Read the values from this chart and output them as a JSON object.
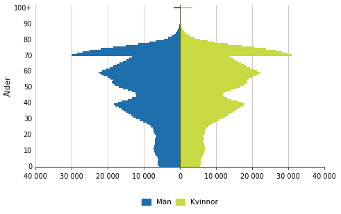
{
  "ylabel": "Ålder",
  "men_color": "#1f6fad",
  "women_color": "#c8d942",
  "background_color": "#ffffff",
  "grid_color": "#b0b0b0",
  "legend_men": "Män",
  "legend_women": "Kvinnor",
  "ages": [
    0,
    1,
    2,
    3,
    4,
    5,
    6,
    7,
    8,
    9,
    10,
    11,
    12,
    13,
    14,
    15,
    16,
    17,
    18,
    19,
    20,
    21,
    22,
    23,
    24,
    25,
    26,
    27,
    28,
    29,
    30,
    31,
    32,
    33,
    34,
    35,
    36,
    37,
    38,
    39,
    40,
    41,
    42,
    43,
    44,
    45,
    46,
    47,
    48,
    49,
    50,
    51,
    52,
    53,
    54,
    55,
    56,
    57,
    58,
    59,
    60,
    61,
    62,
    63,
    64,
    65,
    66,
    67,
    68,
    69,
    70,
    71,
    72,
    73,
    74,
    75,
    76,
    77,
    78,
    79,
    80,
    81,
    82,
    83,
    84,
    85,
    86,
    87,
    88,
    89,
    90,
    91,
    92,
    93,
    94,
    95,
    96,
    97,
    98,
    99,
    100
  ],
  "men": [
    5800,
    6100,
    6200,
    6100,
    6050,
    6200,
    6400,
    6700,
    7000,
    7100,
    7200,
    7300,
    7200,
    7100,
    7000,
    6900,
    6850,
    6900,
    6800,
    6600,
    7000,
    7200,
    7300,
    7400,
    7500,
    8100,
    8700,
    9300,
    10200,
    11100,
    12100,
    12800,
    13500,
    14200,
    14800,
    15500,
    16200,
    17000,
    17800,
    18200,
    17200,
    16100,
    14500,
    13200,
    12200,
    12100,
    12300,
    13200,
    14500,
    15800,
    17000,
    17800,
    18500,
    18900,
    18500,
    19200,
    20000,
    21200,
    22000,
    22500,
    21500,
    20500,
    19500,
    18500,
    17500,
    16800,
    15800,
    14800,
    14000,
    13200,
    30000,
    28500,
    27000,
    25000,
    22000,
    18500,
    15000,
    11500,
    8500,
    6500,
    4500,
    3200,
    2300,
    1700,
    1200,
    800,
    550,
    380,
    250,
    160,
    100,
    65,
    40,
    25,
    15,
    9,
    5,
    3,
    2,
    1,
    1800
  ],
  "women": [
    5500,
    5800,
    5900,
    5800,
    5750,
    5900,
    6100,
    6400,
    6700,
    6800,
    6900,
    7000,
    6900,
    6800,
    6700,
    6600,
    6550,
    6700,
    6500,
    6300,
    6700,
    6900,
    7000,
    7100,
    7200,
    7800,
    8400,
    9000,
    9900,
    10800,
    11800,
    12500,
    13200,
    13900,
    14500,
    15200,
    15900,
    16700,
    17500,
    17900,
    17000,
    15900,
    14300,
    13000,
    12000,
    11900,
    12100,
    13000,
    14300,
    15500,
    16800,
    17600,
    18300,
    18700,
    18400,
    19000,
    19900,
    21000,
    21800,
    22300,
    21400,
    20400,
    19400,
    18500,
    17600,
    16900,
    16100,
    15200,
    14500,
    13800,
    31000,
    29800,
    28200,
    26500,
    23800,
    20500,
    17000,
    13200,
    9800,
    7600,
    5500,
    4000,
    2900,
    2200,
    1600,
    1100,
    780,
    550,
    370,
    240,
    160,
    105,
    65,
    40,
    25,
    15,
    9,
    5,
    3,
    2,
    3500
  ]
}
